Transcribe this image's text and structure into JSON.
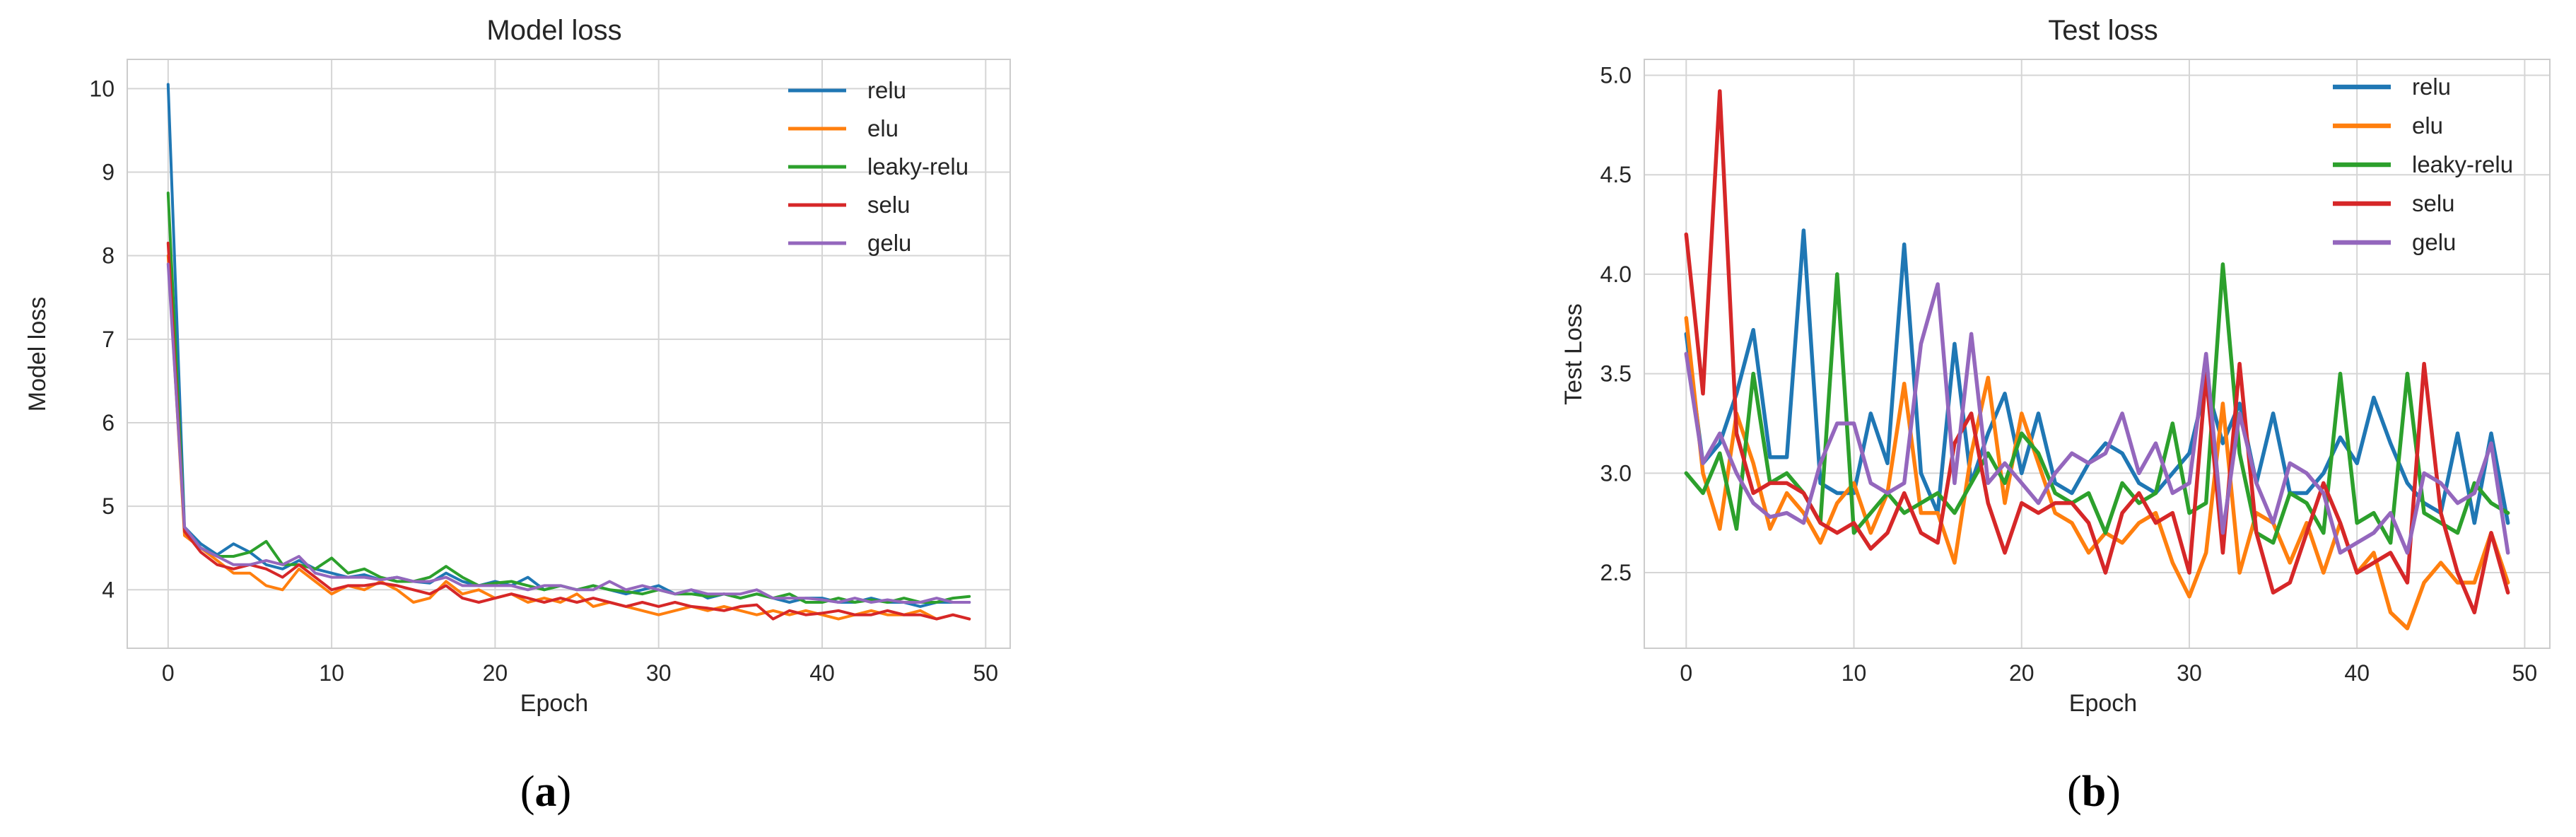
{
  "chart_data": [
    {
      "type": "line",
      "title": "Model loss",
      "xlabel": "Epoch",
      "ylabel": "Model loss",
      "xlim": [
        -2.5,
        51.5
      ],
      "ylim": [
        3.3,
        10.35
      ],
      "xticks": [
        0,
        10,
        20,
        30,
        40,
        50
      ],
      "yticks": [
        4,
        5,
        6,
        7,
        8,
        9,
        10
      ],
      "grid": true,
      "legend_position": "top-right",
      "caption": {
        "open": "(",
        "letter": "a",
        "close": ")"
      },
      "x": [
        0,
        1,
        2,
        3,
        4,
        5,
        6,
        7,
        8,
        9,
        10,
        11,
        12,
        13,
        14,
        15,
        16,
        17,
        18,
        19,
        20,
        21,
        22,
        23,
        24,
        25,
        26,
        27,
        28,
        29,
        30,
        31,
        32,
        33,
        34,
        35,
        36,
        37,
        38,
        39,
        40,
        41,
        42,
        43,
        44,
        45,
        46,
        47,
        48,
        49
      ],
      "series": [
        {
          "name": "relu",
          "color": "#1f77b4",
          "values": [
            10.05,
            4.75,
            4.55,
            4.42,
            4.55,
            4.45,
            4.3,
            4.25,
            4.35,
            4.25,
            4.2,
            4.15,
            4.18,
            4.12,
            4.15,
            4.1,
            4.08,
            4.2,
            4.1,
            4.05,
            4.1,
            4.05,
            4.15,
            4.0,
            4.05,
            4.0,
            4.05,
            4.0,
            3.95,
            4.0,
            4.05,
            3.95,
            4.0,
            3.9,
            3.95,
            3.9,
            3.95,
            3.9,
            3.85,
            3.9,
            3.9,
            3.85,
            3.85,
            3.9,
            3.85,
            3.85,
            3.8,
            3.85,
            3.85,
            3.85
          ]
        },
        {
          "name": "elu",
          "color": "#ff7f0e",
          "values": [
            8.0,
            4.65,
            4.5,
            4.35,
            4.2,
            4.2,
            4.05,
            4.0,
            4.25,
            4.1,
            3.95,
            4.05,
            4.0,
            4.1,
            4.0,
            3.85,
            3.9,
            4.1,
            3.95,
            4.0,
            3.9,
            3.95,
            3.85,
            3.9,
            3.85,
            3.95,
            3.8,
            3.85,
            3.8,
            3.75,
            3.7,
            3.75,
            3.8,
            3.75,
            3.8,
            3.75,
            3.7,
            3.75,
            3.7,
            3.75,
            3.7,
            3.65,
            3.7,
            3.75,
            3.7,
            3.7,
            3.75,
            3.65,
            3.7,
            3.65
          ]
        },
        {
          "name": "leaky-relu",
          "color": "#2ca02c",
          "values": [
            8.75,
            4.7,
            4.5,
            4.4,
            4.4,
            4.45,
            4.58,
            4.3,
            4.3,
            4.25,
            4.38,
            4.2,
            4.25,
            4.15,
            4.1,
            4.1,
            4.15,
            4.28,
            4.15,
            4.05,
            4.08,
            4.1,
            4.05,
            4.0,
            4.05,
            4.0,
            4.05,
            4.0,
            3.98,
            3.95,
            4.0,
            3.95,
            3.95,
            3.92,
            3.95,
            3.9,
            3.95,
            3.9,
            3.95,
            3.85,
            3.85,
            3.9,
            3.85,
            3.88,
            3.85,
            3.9,
            3.85,
            3.85,
            3.9,
            3.92
          ]
        },
        {
          "name": "selu",
          "color": "#d62728",
          "values": [
            8.15,
            4.7,
            4.45,
            4.3,
            4.25,
            4.3,
            4.25,
            4.15,
            4.3,
            4.15,
            4.0,
            4.05,
            4.05,
            4.08,
            4.05,
            4.0,
            3.95,
            4.05,
            3.9,
            3.85,
            3.9,
            3.95,
            3.9,
            3.85,
            3.9,
            3.85,
            3.9,
            3.85,
            3.8,
            3.85,
            3.8,
            3.85,
            3.8,
            3.78,
            3.75,
            3.8,
            3.82,
            3.65,
            3.75,
            3.7,
            3.72,
            3.75,
            3.7,
            3.7,
            3.75,
            3.7,
            3.7,
            3.65,
            3.7,
            3.65
          ]
        },
        {
          "name": "gelu",
          "color": "#9467bd",
          "values": [
            7.9,
            4.75,
            4.5,
            4.4,
            4.3,
            4.3,
            4.35,
            4.3,
            4.4,
            4.2,
            4.15,
            4.15,
            4.15,
            4.12,
            4.15,
            4.1,
            4.1,
            4.15,
            4.05,
            4.05,
            4.05,
            4.05,
            4.0,
            4.05,
            4.05,
            4.0,
            4.0,
            4.1,
            4.0,
            4.05,
            4.0,
            3.95,
            4.0,
            3.95,
            3.95,
            3.95,
            4.0,
            3.9,
            3.9,
            3.9,
            3.88,
            3.85,
            3.9,
            3.85,
            3.88,
            3.85,
            3.85,
            3.9,
            3.85,
            3.85
          ]
        }
      ]
    },
    {
      "type": "line",
      "title": "Test loss",
      "xlabel": "Epoch",
      "ylabel": "Test Loss",
      "xlim": [
        -2.5,
        51.5
      ],
      "ylim": [
        2.12,
        5.08
      ],
      "xticks": [
        0,
        10,
        20,
        30,
        40,
        50
      ],
      "yticks": [
        2.5,
        3.0,
        3.5,
        4.0,
        4.5,
        5.0
      ],
      "ytick_labels": [
        "2.5",
        "3.0",
        "3.5",
        "4.0",
        "4.5",
        "5.0"
      ],
      "grid": true,
      "legend_position": "top-right",
      "caption": {
        "open": "(",
        "letter": "b",
        "close": ")"
      },
      "x": [
        0,
        1,
        2,
        3,
        4,
        5,
        6,
        7,
        8,
        9,
        10,
        11,
        12,
        13,
        14,
        15,
        16,
        17,
        18,
        19,
        20,
        21,
        22,
        23,
        24,
        25,
        26,
        27,
        28,
        29,
        30,
        31,
        32,
        33,
        34,
        35,
        36,
        37,
        38,
        39,
        40,
        41,
        42,
        43,
        44,
        45,
        46,
        47,
        48,
        49
      ],
      "series": [
        {
          "name": "relu",
          "color": "#1f77b4",
          "values": [
            3.7,
            3.05,
            3.15,
            3.4,
            3.72,
            3.08,
            3.08,
            4.22,
            2.95,
            2.9,
            2.9,
            3.3,
            3.05,
            4.15,
            3.0,
            2.8,
            3.65,
            2.95,
            3.2,
            3.4,
            3.0,
            3.3,
            2.95,
            2.9,
            3.05,
            3.15,
            3.1,
            2.95,
            2.9,
            3.0,
            3.1,
            3.45,
            3.15,
            3.35,
            2.95,
            3.3,
            2.9,
            2.9,
            3.0,
            3.18,
            3.05,
            3.38,
            3.15,
            2.95,
            2.85,
            2.8,
            3.2,
            2.75,
            3.2,
            2.75
          ]
        },
        {
          "name": "elu",
          "color": "#ff7f0e",
          "values": [
            3.78,
            3.0,
            2.72,
            3.3,
            3.05,
            2.72,
            2.9,
            2.8,
            2.65,
            2.85,
            2.95,
            2.7,
            2.9,
            3.45,
            2.8,
            2.8,
            2.55,
            3.1,
            3.48,
            2.85,
            3.3,
            3.05,
            2.8,
            2.75,
            2.6,
            2.7,
            2.65,
            2.75,
            2.8,
            2.55,
            2.38,
            2.6,
            3.35,
            2.5,
            2.8,
            2.75,
            2.55,
            2.75,
            2.5,
            2.75,
            2.5,
            2.6,
            2.3,
            2.22,
            2.45,
            2.55,
            2.45,
            2.45,
            2.7,
            2.45
          ]
        },
        {
          "name": "leaky-relu",
          "color": "#2ca02c",
          "values": [
            3.0,
            2.9,
            3.1,
            2.72,
            3.5,
            2.95,
            3.0,
            2.9,
            2.75,
            4.0,
            2.7,
            2.8,
            2.9,
            2.8,
            2.85,
            2.9,
            2.8,
            2.95,
            3.1,
            2.95,
            3.2,
            3.1,
            2.9,
            2.85,
            2.9,
            2.7,
            2.95,
            2.85,
            2.9,
            3.25,
            2.8,
            2.85,
            4.05,
            3.1,
            2.7,
            2.65,
            2.9,
            2.85,
            2.7,
            3.5,
            2.75,
            2.8,
            2.65,
            3.5,
            2.8,
            2.75,
            2.7,
            2.95,
            2.85,
            2.8
          ]
        },
        {
          "name": "selu",
          "color": "#d62728",
          "values": [
            4.2,
            3.4,
            4.92,
            3.2,
            2.9,
            2.95,
            2.95,
            2.9,
            2.75,
            2.7,
            2.75,
            2.62,
            2.7,
            2.9,
            2.7,
            2.65,
            3.15,
            3.3,
            2.85,
            2.6,
            2.85,
            2.8,
            2.85,
            2.85,
            2.75,
            2.5,
            2.8,
            2.9,
            2.75,
            2.8,
            2.5,
            3.5,
            2.6,
            3.55,
            2.7,
            2.4,
            2.45,
            2.7,
            2.95,
            2.75,
            2.5,
            2.55,
            2.6,
            2.45,
            3.55,
            2.8,
            2.5,
            2.3,
            2.7,
            2.4
          ]
        },
        {
          "name": "gelu",
          "color": "#9467bd",
          "values": [
            3.6,
            3.05,
            3.2,
            3.0,
            2.85,
            2.78,
            2.8,
            2.75,
            3.05,
            3.25,
            3.25,
            2.95,
            2.9,
            2.95,
            3.65,
            3.95,
            2.95,
            3.7,
            2.95,
            3.05,
            2.95,
            2.85,
            3.0,
            3.1,
            3.05,
            3.1,
            3.3,
            3.0,
            3.15,
            2.9,
            2.95,
            3.6,
            2.7,
            3.3,
            2.95,
            2.75,
            3.05,
            3.0,
            2.9,
            2.6,
            2.65,
            2.7,
            2.8,
            2.6,
            3.0,
            2.95,
            2.85,
            2.9,
            3.15,
            2.6
          ]
        }
      ]
    }
  ]
}
